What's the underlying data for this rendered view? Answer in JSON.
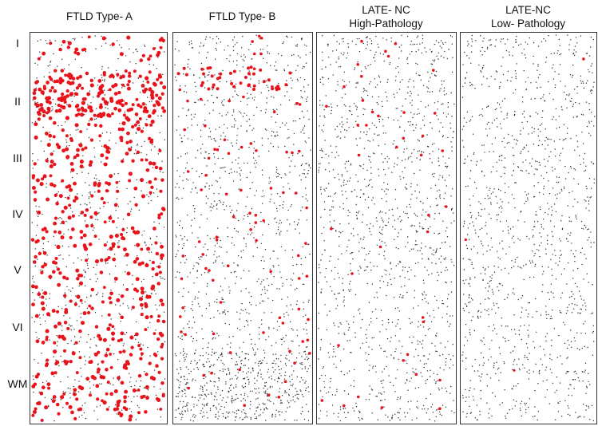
{
  "colors": {
    "positive": "#e8141b",
    "negative": "#2a2a2a",
    "frame": "#333333"
  },
  "layers": [
    "I",
    "II",
    "III",
    "IV",
    "V",
    "VI",
    "WM"
  ],
  "panels": [
    {
      "title_lines": [
        "FTLD Type- A"
      ]
    },
    {
      "title_lines": [
        "FTLD Type- B"
      ]
    },
    {
      "title_lines": [
        "LATE- NC",
        "High-Pathology"
      ]
    },
    {
      "title_lines": [
        "LATE-NC",
        "Low- Pathology"
      ]
    }
  ]
}
